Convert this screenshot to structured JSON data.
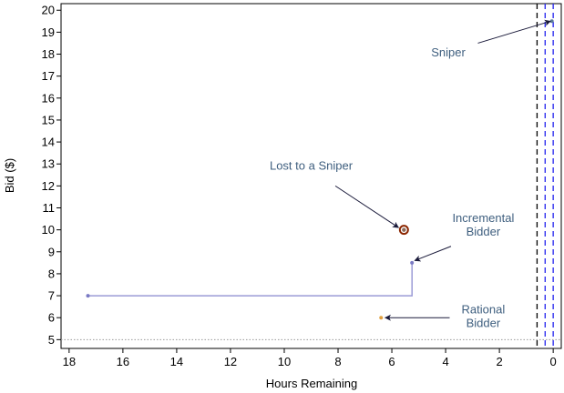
{
  "chart_data": {
    "type": "scatter",
    "xlabel": "Hours Remaining",
    "ylabel": "Bid ($)",
    "xlim": [
      18.3,
      -0.3
    ],
    "ylim": [
      4.6,
      20.3
    ],
    "x_reversed": true,
    "x_ticks": [
      18,
      16,
      14,
      12,
      10,
      8,
      6,
      4,
      2,
      0
    ],
    "y_ticks": [
      5,
      6,
      7,
      8,
      9,
      10,
      11,
      12,
      13,
      14,
      15,
      16,
      17,
      18,
      19,
      20
    ],
    "grid": false,
    "reference_lines": {
      "horizontal_dotted_at": 5,
      "vertical_dashed": [
        {
          "x": 0.6,
          "color": "#000000"
        },
        {
          "x": 0.3,
          "color": "#2222ee"
        },
        {
          "x": 0.0,
          "color": "#2222ee"
        }
      ]
    },
    "series": [
      {
        "kind": "step",
        "color": "#9b9bd6",
        "points": [
          [
            17.3,
            7
          ],
          [
            5.25,
            7
          ],
          [
            5.25,
            8.5
          ]
        ]
      },
      {
        "kind": "points",
        "color": "#7a7ac4",
        "points": [
          [
            17.3,
            7
          ],
          [
            5.25,
            8.5
          ]
        ]
      },
      {
        "kind": "points",
        "color": "#5a7a9a",
        "points": [
          [
            0.05,
            19.5
          ]
        ]
      },
      {
        "kind": "points",
        "color": "#e0a040",
        "points": [
          [
            6.4,
            6
          ]
        ]
      },
      {
        "kind": "highlight",
        "color": "#8b2500",
        "points": [
          [
            5.55,
            10
          ]
        ]
      }
    ],
    "annotations": [
      {
        "lines": [
          "Sniper"
        ],
        "text_at": [
          3.9,
          17.9
        ],
        "anchor": "middle",
        "arrow_from": [
          2.8,
          18.5
        ],
        "arrow_to": [
          0.1,
          19.5
        ]
      },
      {
        "lines": [
          "Lost to a Sniper"
        ],
        "text_at": [
          9.0,
          12.75
        ],
        "anchor": "middle",
        "arrow_from": [
          8.1,
          12.0
        ],
        "arrow_to": [
          5.75,
          10.1
        ]
      },
      {
        "lines": [
          "Incremental",
          "Bidder"
        ],
        "text_at": [
          2.6,
          10.35
        ],
        "anchor": "middle",
        "arrow_from": [
          3.8,
          9.25
        ],
        "arrow_to": [
          5.15,
          8.6
        ]
      },
      {
        "lines": [
          "Rational",
          "Bidder"
        ],
        "text_at": [
          2.6,
          6.2
        ],
        "anchor": "middle",
        "arrow_from": [
          3.85,
          6.0
        ],
        "arrow_to": [
          6.25,
          6.0
        ]
      }
    ]
  }
}
